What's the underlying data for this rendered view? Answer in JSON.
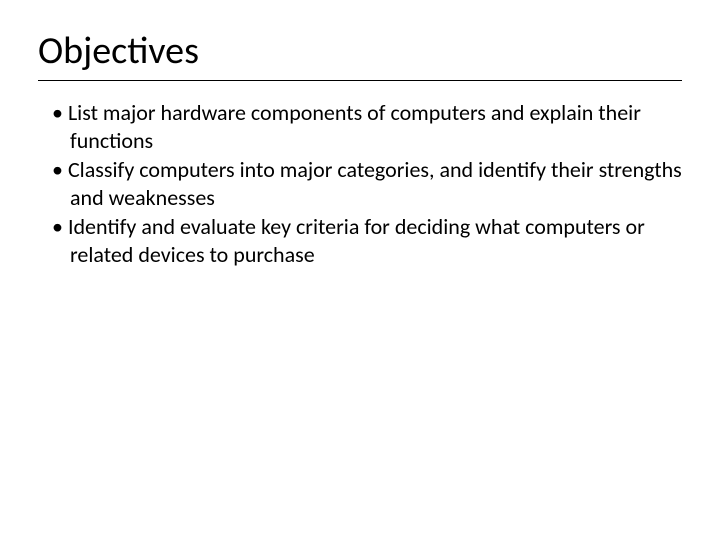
{
  "slide": {
    "title": "Objectives",
    "title_fontsize": 38,
    "title_color": "#000000",
    "divider_color": "#000000",
    "background_color": "#ffffff",
    "body_fontsize": 22,
    "body_color": "#000000",
    "bullets": [
      "List major hardware components of computers and explain their functions",
      "Classify computers into major categories, and identify their strengths and weaknesses",
      "Identify and evaluate key criteria for deciding what computers or related devices to purchase"
    ]
  }
}
